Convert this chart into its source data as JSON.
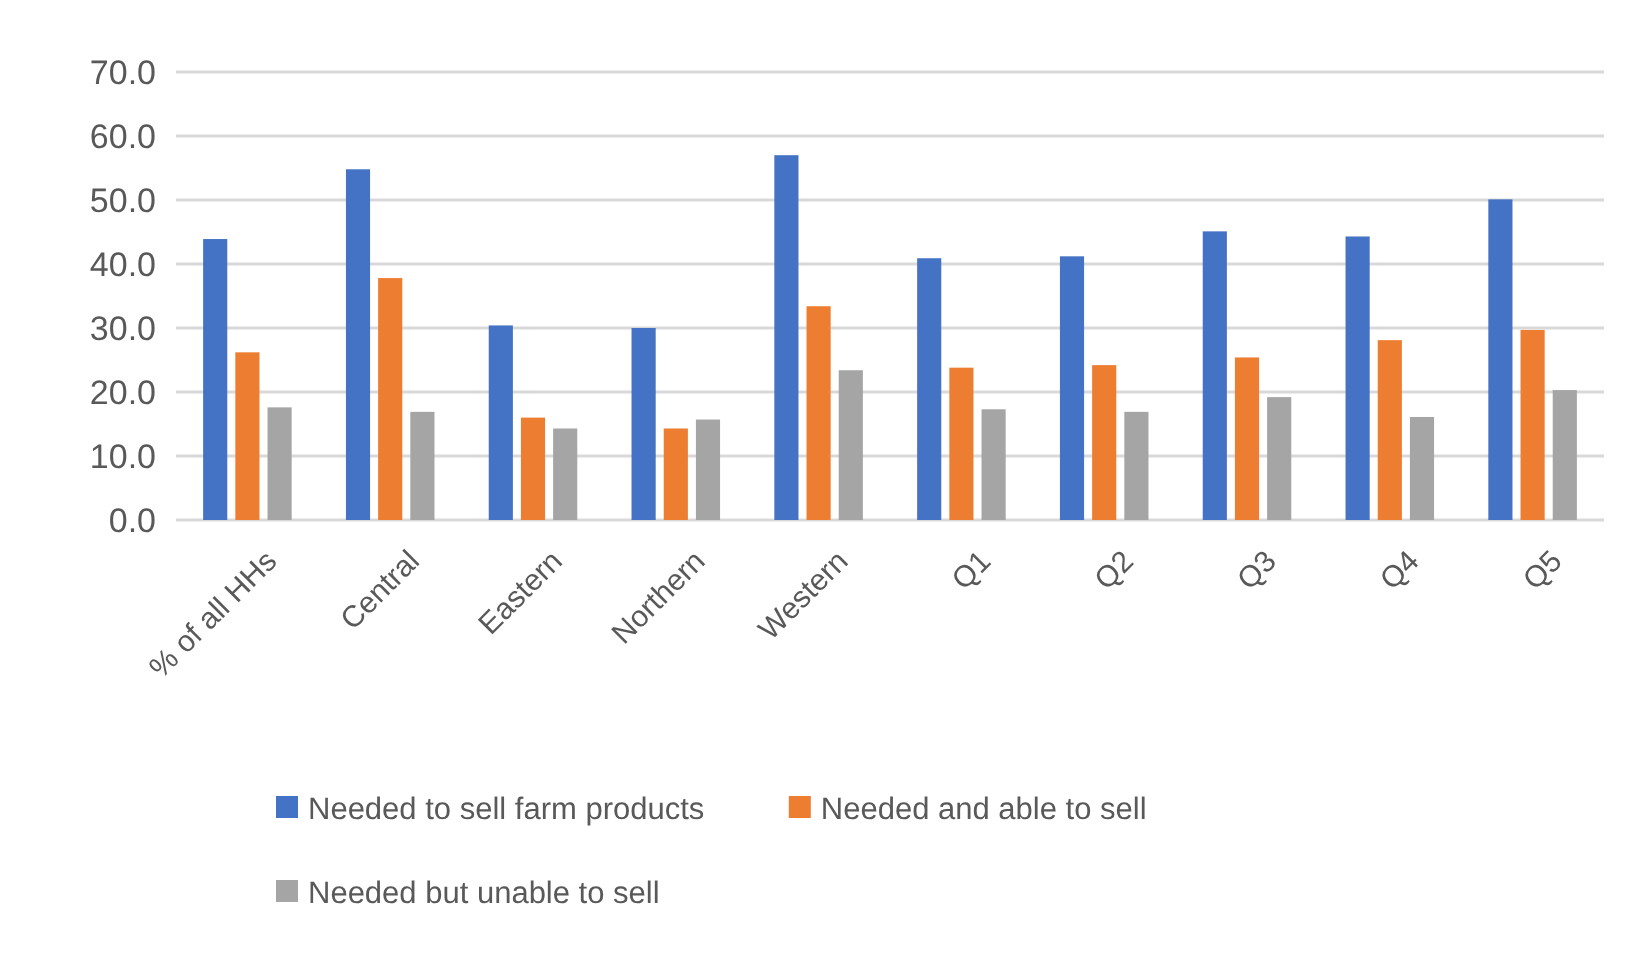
{
  "chart_data": {
    "type": "bar",
    "categories": [
      "% of all HHs",
      "Central",
      "Eastern",
      "Northern",
      "Western",
      "Q1",
      "Q2",
      "Q3",
      "Q4",
      "Q5"
    ],
    "series": [
      {
        "name": "Needed to sell farm products",
        "color": "#4472c4",
        "values": [
          43.9,
          54.8,
          30.4,
          30.0,
          57.0,
          40.9,
          41.2,
          45.1,
          44.3,
          50.1
        ]
      },
      {
        "name": "Needed and able to sell",
        "color": "#ed7d31",
        "values": [
          26.2,
          37.8,
          16.0,
          14.3,
          33.4,
          23.8,
          24.2,
          25.4,
          28.1,
          29.7
        ]
      },
      {
        "name": "Needed but unable to sell",
        "color": "#a5a5a5",
        "values": [
          17.6,
          16.9,
          14.3,
          15.7,
          23.4,
          17.3,
          16.9,
          19.2,
          16.1,
          20.3
        ]
      }
    ],
    "ylim": [
      0,
      70
    ],
    "yticks": [
      {
        "value": 0,
        "label": "0.0"
      },
      {
        "value": 10,
        "label": "10.0"
      },
      {
        "value": 20,
        "label": "20.0"
      },
      {
        "value": 30,
        "label": "30.0"
      },
      {
        "value": 40,
        "label": "40.0"
      },
      {
        "value": 50,
        "label": "50.0"
      },
      {
        "value": 60,
        "label": "60.0"
      },
      {
        "value": 70,
        "label": "70.0"
      }
    ],
    "grid": "y",
    "legend": "bottom"
  }
}
